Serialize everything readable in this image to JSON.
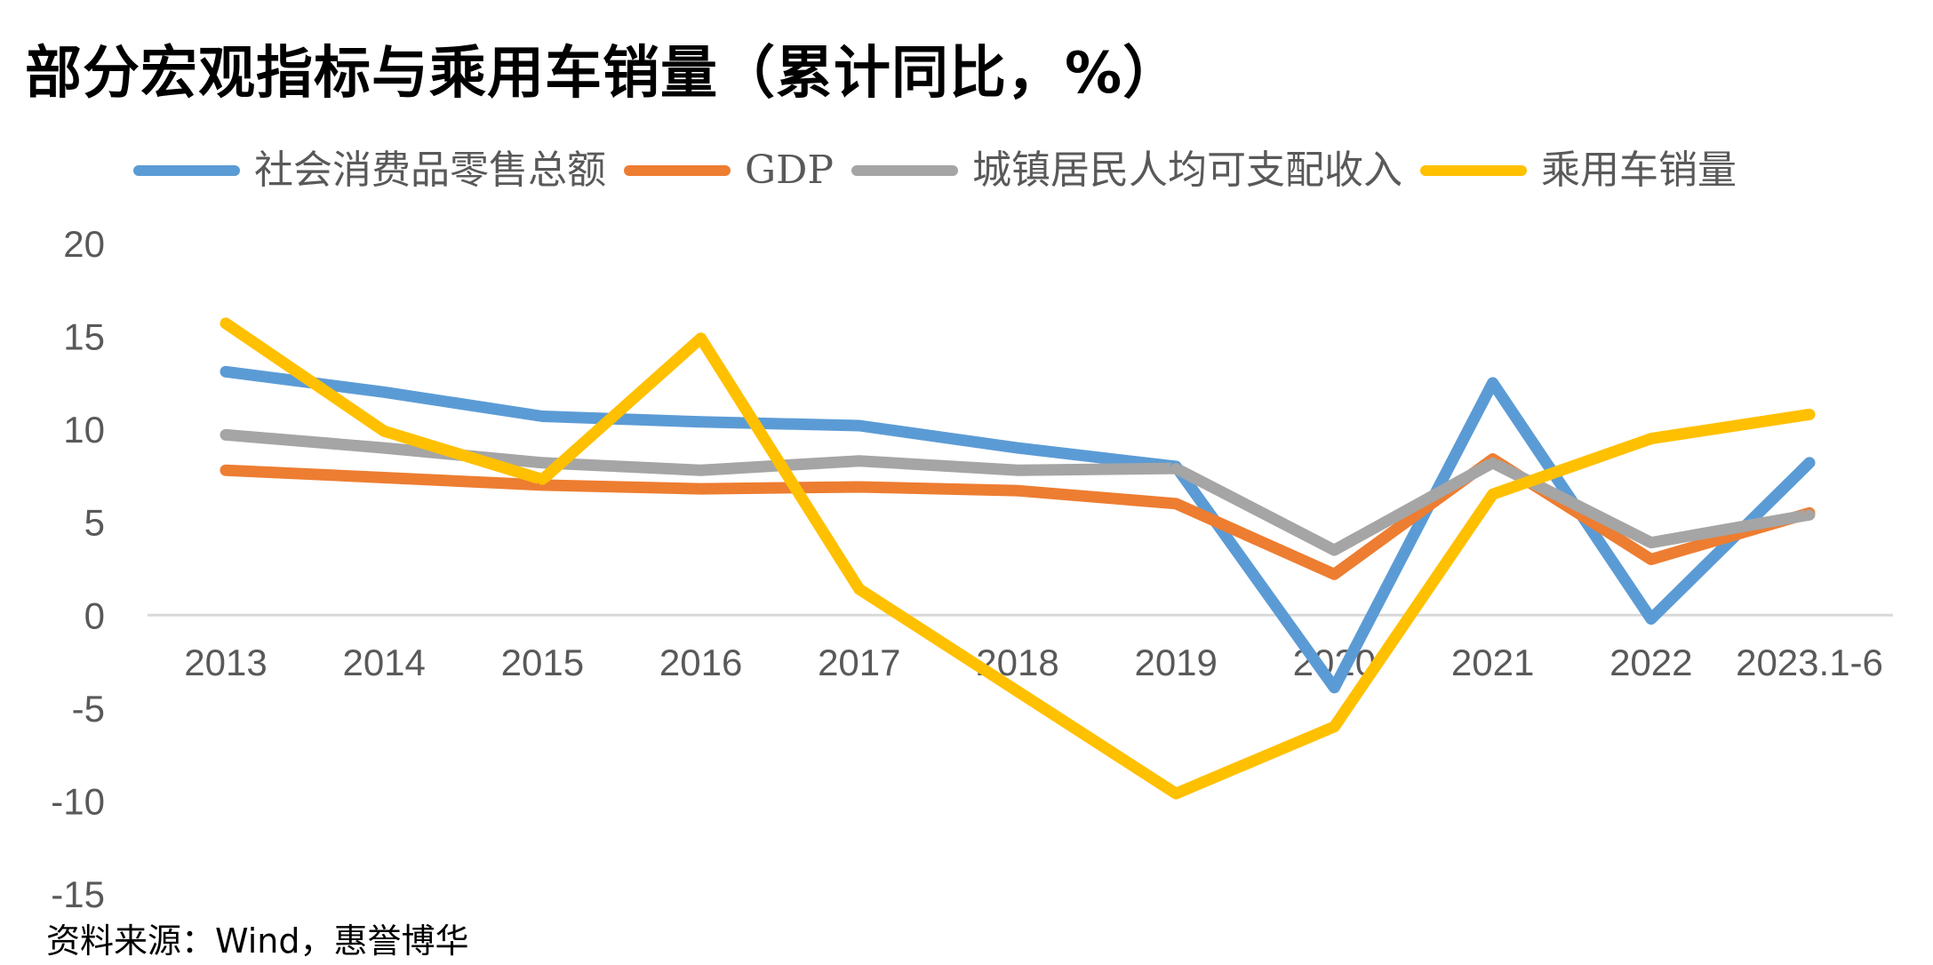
{
  "chart_data": {
    "type": "line",
    "title": "部分宏观指标与乘用车销量（累计同比，%）",
    "categories": [
      "2013",
      "2014",
      "2015",
      "2016",
      "2017",
      "2018",
      "2019",
      "2020",
      "2021",
      "2022",
      "2023.1-6"
    ],
    "ylim": [
      -15,
      20
    ],
    "yticks": [
      20,
      15,
      10,
      5,
      0,
      -5,
      -10,
      -15
    ],
    "grid": false,
    "legend_position": "top",
    "series": [
      {
        "name": "社会消费品零售总额",
        "color": "#5B9BD5",
        "values": [
          13.1,
          12.0,
          10.7,
          10.4,
          10.2,
          9.0,
          8.0,
          -3.9,
          12.5,
          -0.2,
          8.2
        ]
      },
      {
        "name": "GDP",
        "color": "#ED7D31",
        "values": [
          7.8,
          7.4,
          7.0,
          6.8,
          6.9,
          6.7,
          6.0,
          2.2,
          8.4,
          3.0,
          5.5
        ]
      },
      {
        "name": "城镇居民人均可支配收入",
        "color": "#A5A5A5",
        "values": [
          9.7,
          9.0,
          8.2,
          7.8,
          8.3,
          7.8,
          7.9,
          3.5,
          8.2,
          3.9,
          5.4
        ]
      },
      {
        "name": "乘用车销量",
        "color": "#FFC000",
        "values": [
          15.7,
          9.9,
          7.3,
          14.9,
          1.4,
          -4.1,
          -9.6,
          -6.0,
          6.5,
          9.5,
          10.8
        ]
      }
    ]
  },
  "source": "资料来源：Wind，惠誉博华"
}
